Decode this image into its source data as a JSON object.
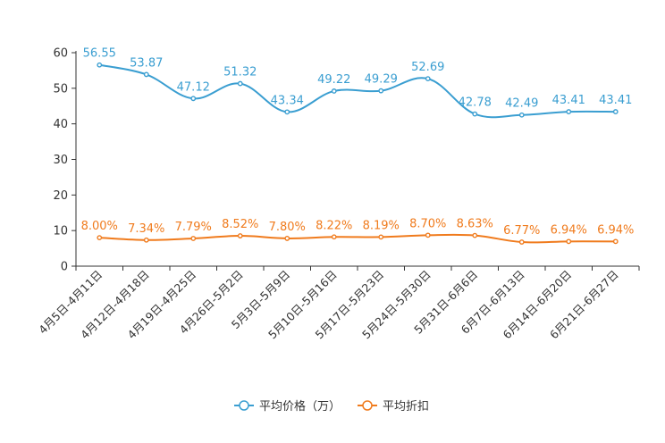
{
  "chart_data": {
    "type": "line",
    "categories": [
      "4月5日-4月11日",
      "4月12日-4月18日",
      "4月19日-4月25日",
      "4月26日-5月2日",
      "5月3日-5月9日",
      "5月10日-5月16日",
      "5月17日-5月23日",
      "5月24日-5月30日",
      "5月31日-6月6日",
      "6月7日-6月13日",
      "6月14日-6月20日",
      "6月21日-6月27日"
    ],
    "ylim": [
      0,
      60
    ],
    "yticks": [
      "0",
      "10",
      "20",
      "30",
      "40",
      "50",
      "60"
    ],
    "series": [
      {
        "name": "平均价格（万）",
        "color": "#3a9ed1",
        "values": [
          56.55,
          53.87,
          47.12,
          51.32,
          43.34,
          49.22,
          49.29,
          52.69,
          42.78,
          42.49,
          43.41,
          43.41
        ],
        "labels": [
          "56.55",
          "53.87",
          "47.12",
          "51.32",
          "43.34",
          "49.22",
          "49.29",
          "52.69",
          "42.78",
          "42.49",
          "43.41",
          "43.41"
        ]
      },
      {
        "name": "平均折扣",
        "color": "#f07b1d",
        "values": [
          8.0,
          7.34,
          7.79,
          8.52,
          7.8,
          8.22,
          8.19,
          8.7,
          8.63,
          6.77,
          6.94,
          6.94
        ],
        "labels": [
          "8.00%",
          "7.34%",
          "7.79%",
          "8.52%",
          "7.80%",
          "8.22%",
          "8.19%",
          "8.70%",
          "8.63%",
          "6.77%",
          "6.94%",
          "6.94%"
        ]
      }
    ],
    "legend_position": "bottom-center",
    "grid": false
  }
}
